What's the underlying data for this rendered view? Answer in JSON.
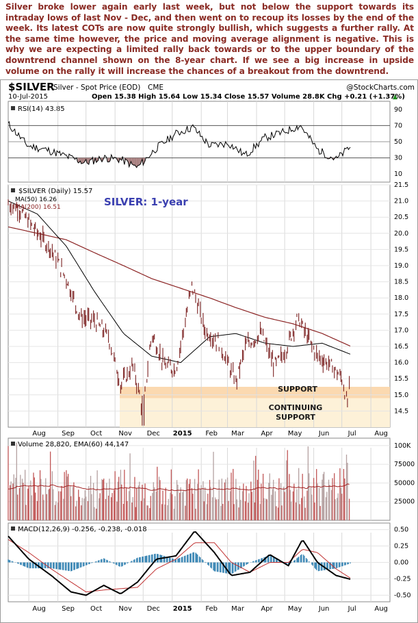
{
  "intro_text": "Silver broke lower again early last week, but not below the support towards its intraday lows of last Nov - Dec, and then went on to recoup its losses by the end of the week. Its latest COTs are now quite strongly bullish, which suggests a further rally. At the same time however, the price and moving average alignment is negative. This is why we are expecting a limited rally back towards or to the upper boundary of the downtrend channel shown on the 8-year chart. If we see a big increase in upside volume on the rally it will increase the chances of a breakout from the downtrend.",
  "header": {
    "symbol": "$SILVER",
    "name": "Silver - Spot Price (EOD)",
    "exchange": "CME",
    "source": "@StockCharts.com",
    "date": "10-Jul-2015",
    "ohlc": "Open 15.38  High 15.64  Low 15.34  Close 15.57  Volume 28.8K  Chg +0.21 (+1.37%)",
    "chg_arrow": "▲"
  },
  "colors": {
    "price": "#7a1f1f",
    "ma50": "#000000",
    "ma200": "#8b2323",
    "volume_bar": "#b4a0a0",
    "volume_bar_up": "#c05555",
    "ema": "#a02020",
    "macd": "#000000",
    "macd_signal": "#c03030",
    "histogram": "#3a86b4",
    "rsi_fill": "#a88080",
    "support_band": "#fbd9b0",
    "continuing_band": "#fdf1d8"
  },
  "chart_data": [
    {
      "type": "line",
      "panel": "RSI",
      "title": "RSI(14) 43.85",
      "ylim": [
        0,
        100
      ],
      "yticks": [
        90,
        70,
        50,
        30,
        10
      ],
      "levels": [
        70,
        50,
        30
      ],
      "x": [
        "2014-07-10",
        "2014-07-31",
        "2014-08-20",
        "2014-09-10",
        "2014-09-30",
        "2014-10-20",
        "2014-11-07",
        "2014-11-25",
        "2014-12-15",
        "2015-01-05",
        "2015-01-23",
        "2015-02-10",
        "2015-03-02",
        "2015-03-20",
        "2015-04-10",
        "2015-04-30",
        "2015-05-18",
        "2015-06-05",
        "2015-06-25",
        "2015-07-10"
      ],
      "values": [
        72,
        45,
        40,
        32,
        24,
        30,
        28,
        18,
        42,
        60,
        68,
        45,
        48,
        33,
        55,
        62,
        70,
        40,
        28,
        43.85
      ]
    },
    {
      "type": "line",
      "panel": "Price",
      "title": "SILVER: 1-year",
      "legend": [
        "$SILVER (Daily) 15.57",
        "MA(50) 16.26",
        "MA(200) 16.51"
      ],
      "ylim": [
        14.0,
        21.5
      ],
      "yticks": [
        21.5,
        21.0,
        20.5,
        20.0,
        19.5,
        19.0,
        18.5,
        18.0,
        17.5,
        17.0,
        16.5,
        16.0,
        15.5,
        15.0,
        14.5
      ],
      "xticks": [
        "Aug",
        "Sep",
        "Oct",
        "Nov",
        "Dec",
        "2015",
        "Feb",
        "Mar",
        "Apr",
        "May",
        "Jun",
        "Jul",
        "Aug"
      ],
      "series": [
        {
          "name": "$SILVER (Daily)",
          "x": [
            "2014-07-10",
            "2014-07-20",
            "2014-08-05",
            "2014-08-25",
            "2014-09-10",
            "2014-09-25",
            "2014-10-10",
            "2014-10-25",
            "2014-11-07",
            "2014-11-20",
            "2014-12-01",
            "2014-12-10",
            "2014-12-24",
            "2015-01-05",
            "2015-01-15",
            "2015-01-22",
            "2015-02-05",
            "2015-02-20",
            "2015-03-10",
            "2015-03-20",
            "2015-04-06",
            "2015-04-20",
            "2015-05-01",
            "2015-05-15",
            "2015-05-25",
            "2015-06-05",
            "2015-06-20",
            "2015-07-01",
            "2015-07-07",
            "2015-07-10"
          ],
          "values": [
            20.9,
            20.8,
            20.2,
            19.5,
            18.6,
            17.4,
            17.3,
            16.8,
            15.3,
            15.9,
            14.5,
            16.9,
            15.9,
            15.8,
            17.3,
            18.4,
            17.0,
            16.6,
            15.4,
            16.5,
            16.9,
            15.9,
            16.3,
            17.4,
            16.8,
            16.2,
            15.9,
            15.5,
            14.7,
            15.57
          ]
        },
        {
          "name": "MA(50)",
          "x": [
            "2014-07-10",
            "2014-08-10",
            "2014-09-10",
            "2014-10-10",
            "2014-11-10",
            "2014-12-10",
            "2015-01-10",
            "2015-02-10",
            "2015-03-10",
            "2015-04-10",
            "2015-05-10",
            "2015-06-10",
            "2015-07-10"
          ],
          "values": [
            21.0,
            20.6,
            19.6,
            18.2,
            16.9,
            16.2,
            16.0,
            16.8,
            16.9,
            16.6,
            16.5,
            16.6,
            16.26
          ]
        },
        {
          "name": "MA(200)",
          "x": [
            "2014-07-10",
            "2014-08-10",
            "2014-09-10",
            "2014-10-10",
            "2014-11-10",
            "2014-12-10",
            "2015-01-10",
            "2015-02-10",
            "2015-03-10",
            "2015-04-10",
            "2015-05-10",
            "2015-06-10",
            "2015-07-10"
          ],
          "values": [
            20.2,
            20.0,
            19.8,
            19.4,
            19.0,
            18.6,
            18.3,
            18.0,
            17.7,
            17.4,
            17.2,
            16.9,
            16.51
          ]
        }
      ],
      "annotations": [
        {
          "label": "SUPPORT",
          "range": [
            14.9,
            15.25
          ]
        },
        {
          "label": "CONTINUING SUPPORT",
          "range": [
            14.0,
            14.9
          ]
        }
      ]
    },
    {
      "type": "bar",
      "panel": "Volume",
      "title": "Volume 28,820, EMA(60) 44,147",
      "ylim": [
        0,
        110000
      ],
      "yticks": [
        "100K",
        "75000",
        "50000",
        "25000"
      ],
      "ema_value": 44147,
      "last_value": 28820
    },
    {
      "type": "line",
      "panel": "MACD",
      "title": "MACD(12,26,9) -0.256, -0.238, -0.018",
      "ylim": [
        -0.6,
        0.6
      ],
      "yticks": [
        "0.50",
        "0.25",
        "0.00",
        "-0.25",
        "-0.50"
      ],
      "series": [
        {
          "name": "MACD",
          "x": [
            "2014-07-10",
            "2014-08-01",
            "2014-08-25",
            "2014-09-15",
            "2014-10-01",
            "2014-10-20",
            "2014-11-07",
            "2014-11-25",
            "2014-12-15",
            "2015-01-05",
            "2015-01-25",
            "2015-02-15",
            "2015-03-05",
            "2015-03-25",
            "2015-04-15",
            "2015-05-05",
            "2015-05-20",
            "2015-06-05",
            "2015-06-25",
            "2015-07-10"
          ],
          "values": [
            0.4,
            0.05,
            -0.2,
            -0.45,
            -0.5,
            -0.35,
            -0.48,
            -0.3,
            0.05,
            0.1,
            0.48,
            0.15,
            -0.2,
            -0.15,
            0.12,
            -0.05,
            0.35,
            0.0,
            -0.2,
            -0.256
          ]
        },
        {
          "name": "Signal",
          "x": [
            "2014-07-10",
            "2014-08-01",
            "2014-08-25",
            "2014-09-15",
            "2014-10-01",
            "2014-10-20",
            "2014-11-07",
            "2014-11-25",
            "2014-12-15",
            "2015-01-05",
            "2015-01-25",
            "2015-02-15",
            "2015-03-05",
            "2015-03-25",
            "2015-04-15",
            "2015-05-05",
            "2015-05-20",
            "2015-06-05",
            "2015-06-25",
            "2015-07-10"
          ],
          "values": [
            0.35,
            0.15,
            -0.1,
            -0.3,
            -0.45,
            -0.42,
            -0.4,
            -0.38,
            -0.1,
            0.05,
            0.3,
            0.3,
            0.0,
            -0.15,
            0.0,
            0.0,
            0.2,
            0.15,
            -0.1,
            -0.238
          ]
        }
      ]
    }
  ]
}
